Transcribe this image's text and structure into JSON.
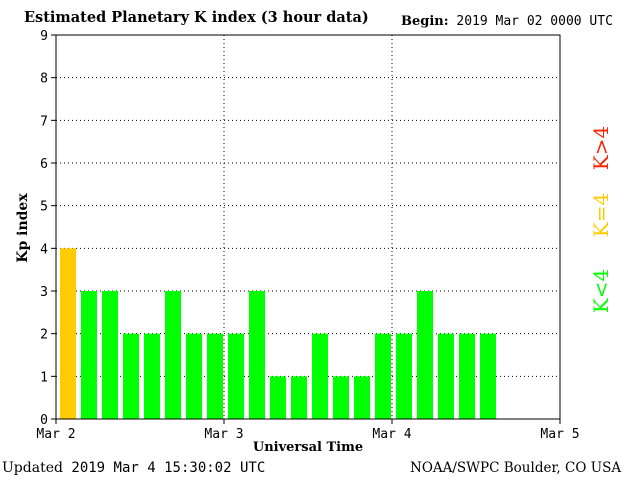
{
  "header": {
    "title": "Estimated Planetary K index (3 hour data)",
    "begin_label": "Begin:",
    "begin_value": "2019 Mar 02 0000 UTC"
  },
  "footer": {
    "updated_label": "Updated",
    "updated_value": "2019 Mar  4 15:30:02 UTC",
    "source": "NOAA/SWPC Boulder, CO USA"
  },
  "legend": {
    "high": {
      "label": "K>4",
      "color": "#ff2200"
    },
    "equal": {
      "label": "K=4",
      "color": "#ffcc00"
    },
    "low": {
      "label": "K<4",
      "color": "#00ff00"
    }
  },
  "chart_data": {
    "type": "bar",
    "xlabel": "Universal Time",
    "ylabel": "Kp index",
    "ylim": [
      0,
      9
    ],
    "y_ticks": [
      "0",
      "1",
      "2",
      "3",
      "4",
      "5",
      "6",
      "7",
      "8",
      "9"
    ],
    "x_ticks": [
      "Mar 2",
      "Mar 3",
      "Mar 4",
      "Mar 5"
    ],
    "slots_total": 24,
    "values": [
      4,
      3,
      3,
      2,
      2,
      3,
      2,
      2,
      2,
      3,
      1,
      1,
      2,
      1,
      1,
      2,
      2,
      3,
      2,
      2,
      2
    ],
    "grid": "dotted"
  }
}
